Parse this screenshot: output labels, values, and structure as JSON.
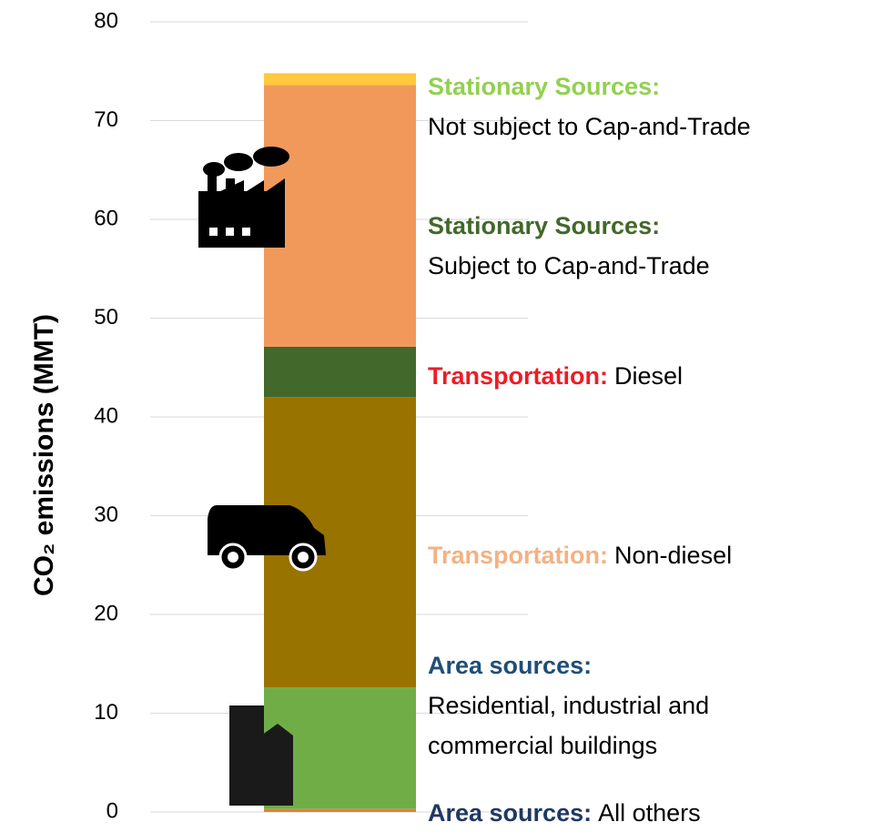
{
  "chart_data": {
    "type": "stacked_bar",
    "y_label": "CO₂ emissions (MMT)",
    "ylim": [
      0,
      80
    ],
    "yticks": [
      0,
      10,
      20,
      30,
      40,
      50,
      60,
      70,
      80
    ],
    "grid": true,
    "series": [
      {
        "name": "Area sources:",
        "description": [
          "All others"
        ],
        "color": "#ed7d31",
        "label_color": "#1f3864",
        "values": [
          0.3
        ]
      },
      {
        "name": "Area sources:",
        "description": [
          "Residential, industrial and",
          "commercial buildings"
        ],
        "color": "#70ad47",
        "label_color": "#1f4e79",
        "values": [
          12.3
        ]
      },
      {
        "name": "Transportation:",
        "description": [
          "Non-diesel"
        ],
        "color": "#997300",
        "label_color": "#f4b183",
        "values": [
          29.4
        ]
      },
      {
        "name": "Transportation:",
        "description": [
          "Diesel"
        ],
        "color": "#43682b",
        "label_color": "#ee1c25",
        "values": [
          5.1
        ]
      },
      {
        "name": "Stationary Sources:",
        "description": [
          "Subject to Cap-and-Trade"
        ],
        "color": "#f1995b",
        "label_color": "#43682b",
        "values": [
          26.5
        ]
      },
      {
        "name": "Stationary Sources:",
        "description": [
          "Not subject to Cap-and-Trade"
        ],
        "color": "#ffc83d",
        "label_color": "#92d050",
        "values": [
          1.2
        ]
      }
    ]
  }
}
